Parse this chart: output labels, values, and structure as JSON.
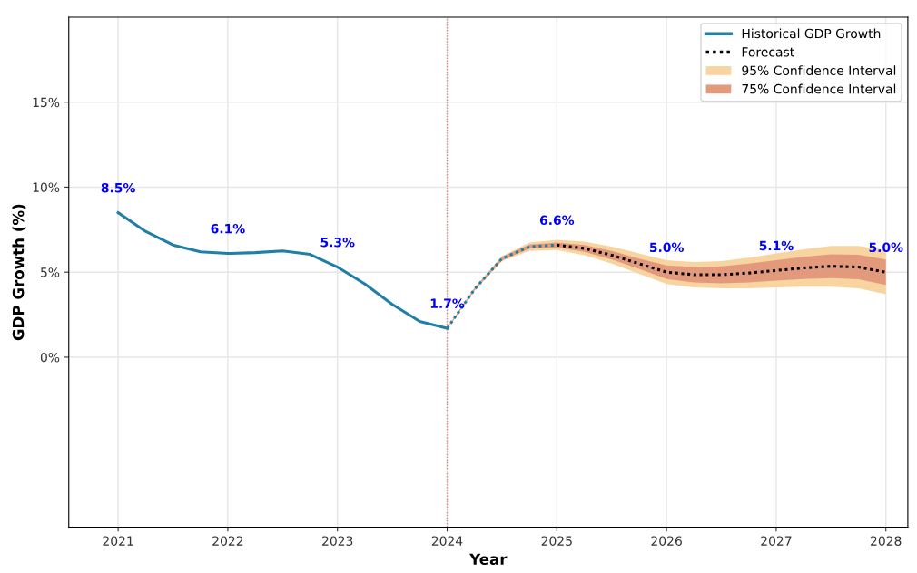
{
  "chart_data": {
    "type": "line",
    "xlabel": "Year",
    "ylabel": "GDP Growth (%)",
    "xlim": [
      2020.55,
      2028.2
    ],
    "ylim": [
      -10,
      20
    ],
    "xticks": [
      2021,
      2022,
      2023,
      2024,
      2025,
      2026,
      2027,
      2028
    ],
    "yticks": [
      {
        "value": 0,
        "label": "0%"
      },
      {
        "value": 5,
        "label": "5%"
      },
      {
        "value": 10,
        "label": "10%"
      },
      {
        "value": 15,
        "label": "15%"
      }
    ],
    "grid": true,
    "legend": "top right",
    "marker": "none",
    "series": [
      {
        "name": "Historical GDP Growth",
        "color": "#1f7fa6",
        "line_style": "solid",
        "x": [
          2021,
          2021.25,
          2021.5,
          2021.75,
          2022,
          2022.25,
          2022.5,
          2022.75,
          2023,
          2023.25,
          2023.5,
          2023.75,
          2024
        ],
        "values": [
          8.5,
          7.4,
          6.6,
          6.2,
          6.1,
          6.15,
          6.25,
          6.05,
          5.3,
          4.3,
          3.1,
          2.1,
          1.7
        ]
      },
      {
        "name": "Forecast",
        "color": "#000000",
        "line_style": "dotted",
        "x": [
          2025,
          2025.25,
          2025.5,
          2025.75,
          2026,
          2026.25,
          2026.5,
          2026.75,
          2027,
          2027.25,
          2027.5,
          2027.75,
          2028
        ],
        "values": [
          6.6,
          6.4,
          6.0,
          5.5,
          5.0,
          4.85,
          4.85,
          4.95,
          5.1,
          5.25,
          5.35,
          5.3,
          5.0
        ]
      },
      {
        "color": "#1f7fa6",
        "line_style": "dotted",
        "x": [
          2024,
          2024.25,
          2024.5,
          2024.75,
          2025
        ],
        "values": [
          1.7,
          4.0,
          5.8,
          6.5,
          6.6
        ]
      },
      {
        "name": "95% Confidence Interval",
        "color": "#f8d5a0",
        "x": [
          2024,
          2024.25,
          2024.5,
          2024.75,
          2025,
          2025.25,
          2025.5,
          2025.75,
          2026,
          2026.25,
          2026.5,
          2026.75,
          2027,
          2027.25,
          2027.5,
          2027.75,
          2028
        ],
        "values": [
          null,
          null,
          null,
          null,
          null,
          null,
          null,
          null,
          null,
          null,
          null,
          null,
          null,
          null,
          null,
          null,
          null
        ],
        "lower": [
          1.65,
          3.9,
          5.65,
          6.25,
          6.3,
          6.0,
          5.5,
          4.9,
          4.3,
          4.1,
          4.05,
          4.05,
          4.1,
          4.15,
          4.15,
          4.05,
          3.7
        ],
        "upper": [
          1.75,
          4.1,
          5.95,
          6.75,
          6.9,
          6.8,
          6.5,
          6.1,
          5.7,
          5.6,
          5.65,
          5.85,
          6.1,
          6.35,
          6.55,
          6.55,
          6.3
        ]
      },
      {
        "name": "75% Confidence Interval",
        "color": "#e39a7c",
        "x": [
          2024,
          2024.25,
          2024.5,
          2024.75,
          2025,
          2025.25,
          2025.5,
          2025.75,
          2026,
          2026.25,
          2026.5,
          2026.75,
          2027,
          2027.25,
          2027.5,
          2027.75,
          2028
        ],
        "values": [
          null,
          null,
          null,
          null,
          null,
          null,
          null,
          null,
          null,
          null,
          null,
          null,
          null,
          null,
          null,
          null,
          null
        ],
        "lower": [
          1.67,
          3.95,
          5.7,
          6.38,
          6.45,
          6.2,
          5.75,
          5.2,
          4.6,
          4.4,
          4.35,
          4.4,
          4.5,
          4.6,
          4.65,
          4.58,
          4.25
        ],
        "upper": [
          1.73,
          4.05,
          5.9,
          6.62,
          6.75,
          6.6,
          6.25,
          5.8,
          5.4,
          5.3,
          5.35,
          5.5,
          5.7,
          5.9,
          6.05,
          6.02,
          5.75
        ]
      }
    ],
    "ref_lines": [
      {
        "axis": "x",
        "value": 2024,
        "color": "#f08080",
        "line_style": "dotted"
      }
    ],
    "annotations": [
      {
        "text": "8.5%",
        "x": 2021,
        "y": 8.5
      },
      {
        "text": "6.1%",
        "x": 2022,
        "y": 6.1
      },
      {
        "text": "5.3%",
        "x": 2023,
        "y": 5.3
      },
      {
        "text": "1.7%",
        "x": 2024,
        "y": 1.7
      },
      {
        "text": "6.6%",
        "x": 2025,
        "y": 6.6
      },
      {
        "text": "5.0%",
        "x": 2026,
        "y": 5.0
      },
      {
        "text": "5.1%",
        "x": 2027,
        "y": 5.1
      },
      {
        "text": "5.0%",
        "x": 2028,
        "y": 5.0
      }
    ]
  }
}
